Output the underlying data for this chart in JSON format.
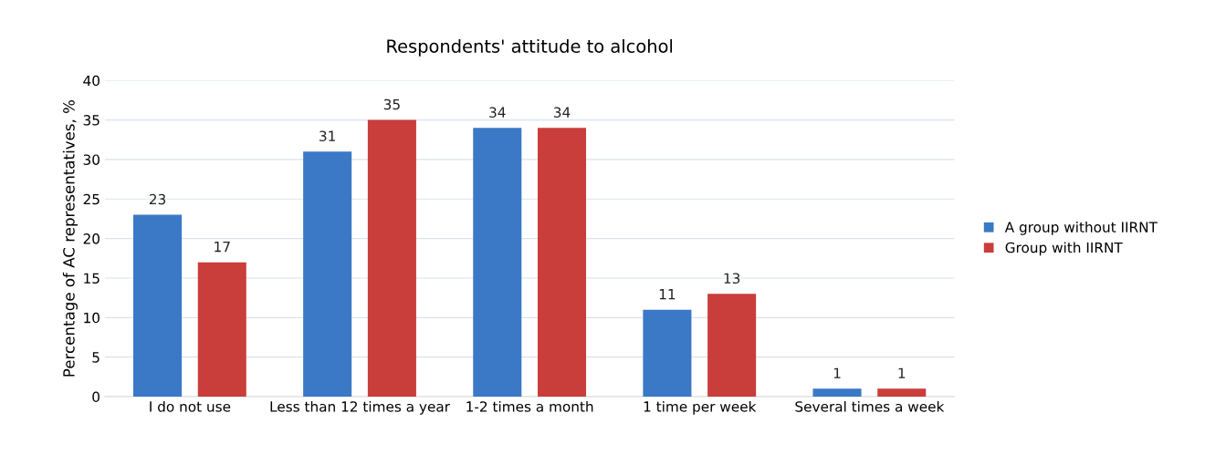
{
  "chart_data": {
    "type": "bar",
    "title": "Respondents' attitude to alcohol",
    "ylabel": "Percentage of AC representatives, %",
    "categories": [
      "I do not use",
      "Less than 12 times a year",
      "1-2 times a month",
      "1 time per week",
      "Several times a week"
    ],
    "series": [
      {
        "name": "A group without IIRNT",
        "color": "#3b78c6",
        "values": [
          23,
          31,
          34,
          11,
          1
        ]
      },
      {
        "name": "Group with IIRNT",
        "color": "#c93d3a",
        "values": [
          17,
          35,
          34,
          13,
          1
        ]
      }
    ],
    "ylim": [
      0,
      40
    ],
    "yticks": [
      0,
      5,
      10,
      15,
      20,
      25,
      30,
      35,
      40
    ],
    "grid": "y",
    "legend": "right",
    "data_labels": true
  }
}
